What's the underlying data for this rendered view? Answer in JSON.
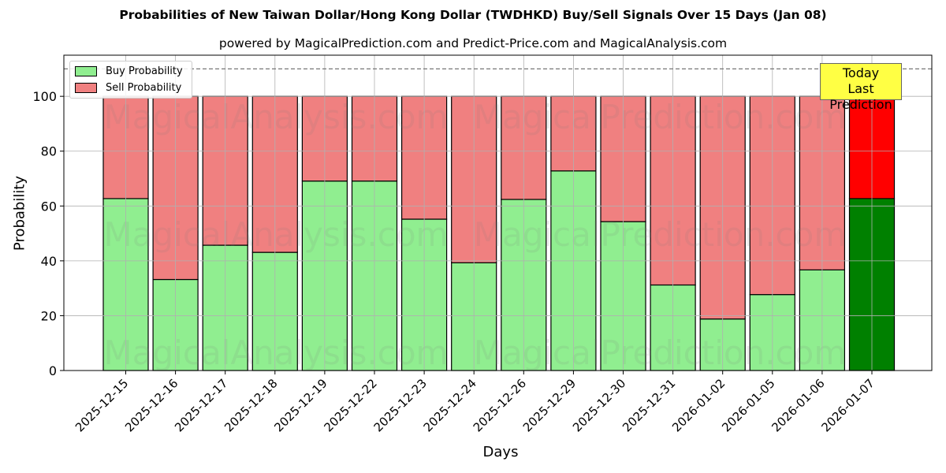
{
  "title": "Probabilities of New Taiwan Dollar/Hong Kong Dollar (TWDHKD) Buy/Sell Signals Over 15 Days (Jan 08)",
  "subtitle": "powered by MagicalPrediction.com and Predict-Price.com and MagicalAnalysis.com",
  "annotation": {
    "line1": "Today",
    "line2": "Last Prediction"
  },
  "watermarks": [
    "MagicalAnalysis.com",
    "MagicalPrediction.com"
  ],
  "colors": {
    "buy": "#90ee90",
    "sell": "#f08080",
    "today_buy": "#008000",
    "today_sell": "#ff0000",
    "annotation_bg": "#ffff44"
  },
  "chart_data": {
    "type": "bar",
    "stacked": true,
    "title": "Probabilities of New Taiwan Dollar/Hong Kong Dollar (TWDHKD) Buy/Sell Signals Over 15 Days (Jan 08)",
    "subtitle": "powered by MagicalPrediction.com and Predict-Price.com and MagicalAnalysis.com",
    "xlabel": "Days",
    "ylabel": "Probability",
    "ylim": [
      0,
      115
    ],
    "yticks": [
      0,
      20,
      40,
      60,
      80,
      100
    ],
    "grid": true,
    "reference_line": {
      "y": 110,
      "style": "dashed"
    },
    "legend": {
      "position": "upper left",
      "entries": [
        "Buy Probability",
        "Sell Probability"
      ]
    },
    "categories": [
      "2025-12-15",
      "2025-12-16",
      "2025-12-17",
      "2025-12-18",
      "2025-12-19",
      "2025-12-22",
      "2025-12-23",
      "2025-12-24",
      "2025-12-26",
      "2025-12-29",
      "2025-12-30",
      "2025-12-31",
      "2026-01-02",
      "2026-01-05",
      "2026-01-06",
      "2026-01-07"
    ],
    "series": [
      {
        "name": "Buy Probability",
        "values": [
          62.7,
          33.2,
          45.7,
          43.1,
          69.1,
          69.1,
          55.2,
          39.3,
          62.4,
          72.8,
          54.3,
          31.2,
          18.8,
          27.7,
          36.7,
          62.7
        ]
      },
      {
        "name": "Sell Probability",
        "values": [
          37.3,
          66.8,
          54.3,
          56.9,
          30.9,
          30.9,
          44.8,
          60.7,
          37.6,
          27.2,
          45.7,
          68.8,
          81.2,
          72.3,
          63.3,
          37.3
        ]
      }
    ],
    "highlight_last": {
      "label": "Today Last Prediction",
      "category": "2026-01-07"
    }
  }
}
